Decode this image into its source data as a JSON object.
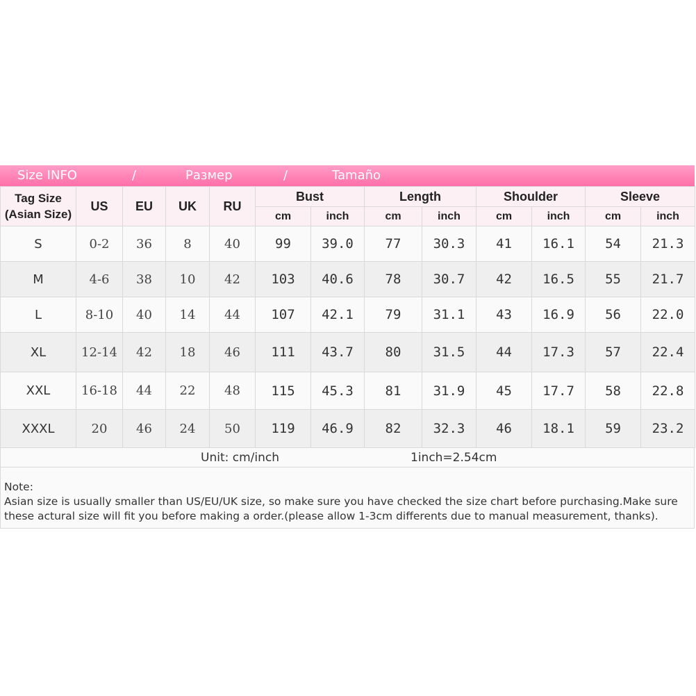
{
  "banner": {
    "en": "Size INFO",
    "sep1": "/",
    "ru": "Размер",
    "sep2": "/",
    "es": "Tamaño"
  },
  "header": {
    "tag_size_line1": "Tag Size",
    "tag_size_line2": "(Asian Size)",
    "us": "US",
    "eu": "EU",
    "uk": "UK",
    "ru": "RU",
    "bust": "Bust",
    "length": "Length",
    "shoulder": "Shoulder",
    "sleeve": "Sleeve",
    "cm": "cm",
    "inch": "inch"
  },
  "rows": [
    {
      "tag": "S",
      "us": "0-2",
      "eu": "36",
      "uk": "8",
      "ru": "40",
      "bust_cm": "99",
      "bust_in": "39.0",
      "length_cm": "77",
      "length_in": "30.3",
      "shoulder_cm": "41",
      "shoulder_in": "16.1",
      "sleeve_cm": "54",
      "sleeve_in": "21.3"
    },
    {
      "tag": "M",
      "us": "4-6",
      "eu": "38",
      "uk": "10",
      "ru": "42",
      "bust_cm": "103",
      "bust_in": "40.6",
      "length_cm": "78",
      "length_in": "30.7",
      "shoulder_cm": "42",
      "shoulder_in": "16.5",
      "sleeve_cm": "55",
      "sleeve_in": "21.7"
    },
    {
      "tag": "L",
      "us": "8-10",
      "eu": "40",
      "uk": "14",
      "ru": "44",
      "bust_cm": "107",
      "bust_in": "42.1",
      "length_cm": "79",
      "length_in": "31.1",
      "shoulder_cm": "43",
      "shoulder_in": "16.9",
      "sleeve_cm": "56",
      "sleeve_in": "22.0"
    },
    {
      "tag": "XL",
      "us": "12-14",
      "eu": "42",
      "uk": "18",
      "ru": "46",
      "bust_cm": "111",
      "bust_in": "43.7",
      "length_cm": "80",
      "length_in": "31.5",
      "shoulder_cm": "44",
      "shoulder_in": "17.3",
      "sleeve_cm": "57",
      "sleeve_in": "22.4"
    },
    {
      "tag": "XXL",
      "us": "16-18",
      "eu": "44",
      "uk": "22",
      "ru": "48",
      "bust_cm": "115",
      "bust_in": "45.3",
      "length_cm": "81",
      "length_in": "31.9",
      "shoulder_cm": "45",
      "shoulder_in": "17.7",
      "sleeve_cm": "58",
      "sleeve_in": "22.8"
    },
    {
      "tag": "XXXL",
      "us": "20",
      "eu": "46",
      "uk": "24",
      "ru": "50",
      "bust_cm": "119",
      "bust_in": "46.9",
      "length_cm": "82",
      "length_in": "32.3",
      "shoulder_cm": "46",
      "shoulder_in": "18.1",
      "sleeve_cm": "59",
      "sleeve_in": "23.2"
    }
  ],
  "unit": {
    "unit_text": "Unit: cm/inch",
    "conversion": "1inch=2.54cm"
  },
  "note": {
    "title": "Note:",
    "line1": "Asian size is usually smaller than US/EU/UK size, so make sure you have checked the size chart before purchasing.Make sure",
    "line2": "these actural size will fit you before making a order.(please allow 1-3cm differents due to manual measurement, thanks)."
  },
  "colors": {
    "banner_top": "#ff9ec8",
    "banner_bottom": "#ff6fa8",
    "header_bg": "#fdf0f4",
    "row_odd": "#fafafa",
    "row_even": "#efefef"
  }
}
